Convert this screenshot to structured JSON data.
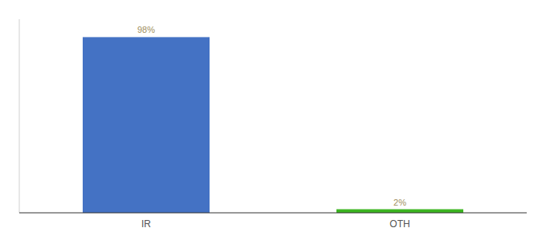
{
  "chart_data": {
    "type": "bar",
    "categories": [
      "IR",
      "OTH"
    ],
    "values": [
      98,
      2
    ],
    "value_labels": [
      "98%",
      "2%"
    ],
    "colors": [
      "#4472c4",
      "#3cb521"
    ],
    "ylim": [
      0,
      108
    ],
    "yticks": [],
    "data_labels": true,
    "tick_labels": "x"
  }
}
